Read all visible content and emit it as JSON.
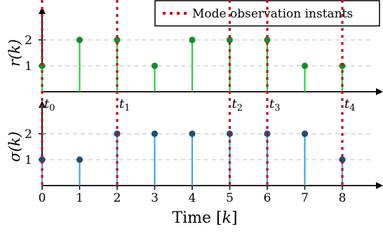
{
  "colors": {
    "r_stem": "#2ecc40",
    "r_marker": "#1e8a2e",
    "sigma_stem": "#4aa3d8",
    "sigma_marker": "#1f4e79",
    "observation": "#c0101a",
    "grid": "#bbbbbb"
  },
  "chart_data": [
    {
      "type": "stem",
      "ylabel": "r(k)",
      "x": [
        0,
        1,
        2,
        3,
        4,
        5,
        6,
        7,
        8
      ],
      "values": [
        1,
        2,
        2,
        1,
        2,
        2,
        2,
        1,
        1
      ],
      "yticks": [
        1,
        2
      ],
      "ylim": [
        0,
        2.8
      ],
      "grid": "horizontal dashed at ticks",
      "observation_instants": [
        0,
        2,
        5,
        6,
        8
      ],
      "instant_labels": [
        "t0",
        "t1",
        "t2",
        "t3",
        "t4"
      ]
    },
    {
      "type": "stem",
      "ylabel": "σ(k)",
      "xlabel": "Time [k]",
      "x": [
        0,
        1,
        2,
        3,
        4,
        5,
        6,
        7,
        8
      ],
      "values": [
        1,
        1,
        2,
        2,
        2,
        2,
        2,
        2,
        1
      ],
      "xticks": [
        "0",
        "1",
        "2",
        "3",
        "4",
        "5",
        "6",
        "7",
        "8"
      ],
      "yticks": [
        1,
        2
      ],
      "ylim": [
        0,
        2.8
      ],
      "grid": "horizontal dashed at ticks",
      "observation_instants": [
        0,
        2,
        5,
        6,
        8
      ]
    }
  ],
  "legend": {
    "label": "Mode observation instants",
    "placement": "top-right"
  }
}
